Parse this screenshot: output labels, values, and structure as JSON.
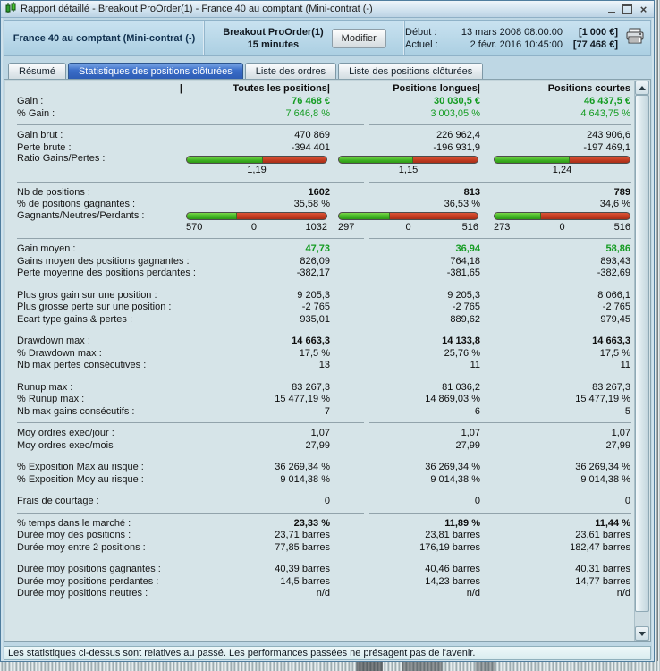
{
  "window": {
    "title": "Rapport détaillé - Breakout ProOrder(1) - France 40 au comptant (Mini-contrat  (-)",
    "close_glyph": "×"
  },
  "header": {
    "instrument": "France 40 au comptant (Mini-contrat  (-)",
    "strategy": "Breakout ProOrder(1)",
    "timeframe": "15 minutes",
    "modify_button": "Modifier",
    "start": {
      "label": "Début :",
      "datetime": "13 mars 2008 08:00:00",
      "amount": "[1 000 €]"
    },
    "current": {
      "label": "Actuel :",
      "datetime": "2 févr. 2016 10:45:00",
      "amount": "[77 468 €]"
    }
  },
  "tabs": [
    {
      "label": "Résumé",
      "active": false
    },
    {
      "label": "Statistiques des positions clôturées",
      "active": true
    },
    {
      "label": "Liste des ordres",
      "active": false
    },
    {
      "label": "Liste des positions clôturées",
      "active": false
    }
  ],
  "table": {
    "label_column_pipe": "|",
    "columns": [
      "Toutes les positions|",
      "Positions longues|",
      "Positions courtes"
    ],
    "gauge_colors": {
      "green": "#3fb224",
      "red": "#c03a20"
    },
    "rows": [
      {
        "type": "row",
        "label": "Gain :",
        "values": [
          "76 468 €",
          "30 030,5 €",
          "46 437,5 €"
        ],
        "style": "green bold"
      },
      {
        "type": "row",
        "label": "% Gain :",
        "values": [
          "7 646,8 %",
          "3 003,05 %",
          "4 643,75 %"
        ],
        "style": "green"
      },
      {
        "type": "sep"
      },
      {
        "type": "row",
        "label": "Gain brut :",
        "values": [
          "470 869",
          "226 962,4",
          "243 906,6"
        ]
      },
      {
        "type": "row",
        "label": "Perte brute :",
        "values": [
          "-394 401",
          "-196 931,9",
          "-197 469,1"
        ]
      },
      {
        "type": "bars",
        "label": "Ratio Gains/Pertes :",
        "fractions": [
          0.543,
          0.535,
          0.554
        ]
      },
      {
        "type": "barvals",
        "values": [
          [
            "1,19"
          ],
          [
            "1,15"
          ],
          [
            "1,24"
          ]
        ]
      },
      {
        "type": "sep"
      },
      {
        "type": "row",
        "label": "Nb de positions :",
        "values": [
          "1602",
          "813",
          "789"
        ],
        "style": "bold"
      },
      {
        "type": "row",
        "label": "% de positions gagnantes :",
        "values": [
          "35,58 %",
          "36,53 %",
          "34,6 %"
        ]
      },
      {
        "type": "bars",
        "label": "Gagnants/Neutres/Perdants :",
        "fractions": [
          0.356,
          0.365,
          0.346
        ]
      },
      {
        "type": "barvals",
        "values": [
          [
            "570",
            "0",
            "1032"
          ],
          [
            "297",
            "0",
            "516"
          ],
          [
            "273",
            "0",
            "516"
          ]
        ]
      },
      {
        "type": "sep"
      },
      {
        "type": "row",
        "label": "Gain moyen :",
        "values": [
          "47,73",
          "36,94",
          "58,86"
        ],
        "style": "green bold"
      },
      {
        "type": "row",
        "label": "Gains moyen des positions gagnantes :",
        "values": [
          "826,09",
          "764,18",
          "893,43"
        ]
      },
      {
        "type": "row",
        "label": "Perte moyenne des positions perdantes :",
        "values": [
          "-382,17",
          "-381,65",
          "-382,69"
        ]
      },
      {
        "type": "sep"
      },
      {
        "type": "row",
        "label": "Plus gros gain sur une position :",
        "values": [
          "9 205,3",
          "9 205,3",
          "8 066,1"
        ]
      },
      {
        "type": "row",
        "label": "Plus grosse perte sur une position :",
        "values": [
          "-2 765",
          "-2 765",
          "-2 765"
        ]
      },
      {
        "type": "row",
        "label": "Ecart type gains & pertes :",
        "values": [
          "935,01",
          "889,62",
          "979,45"
        ]
      },
      {
        "type": "gap"
      },
      {
        "type": "row",
        "label": "Drawdown max :",
        "values": [
          "14 663,3",
          "14 133,8",
          "14 663,3"
        ],
        "style": "bold"
      },
      {
        "type": "row",
        "label": "% Drawdown max :",
        "values": [
          "17,5 %",
          "25,76 %",
          "17,5 %"
        ]
      },
      {
        "type": "row",
        "label": "Nb max pertes consécutives :",
        "values": [
          "13",
          "11",
          "11"
        ]
      },
      {
        "type": "gap"
      },
      {
        "type": "row",
        "label": "Runup max :",
        "values": [
          "83 267,3",
          "81 036,2",
          "83 267,3"
        ]
      },
      {
        "type": "row",
        "label": "% Runup max :",
        "values": [
          "15 477,19 %",
          "14 869,03 %",
          "15 477,19 %"
        ]
      },
      {
        "type": "row",
        "label": "Nb max gains consécutifs :",
        "values": [
          "7",
          "6",
          "5"
        ]
      },
      {
        "type": "sep"
      },
      {
        "type": "row",
        "label": "Moy ordres exec/jour :",
        "values": [
          "1,07",
          "1,07",
          "1,07"
        ]
      },
      {
        "type": "row",
        "label": "Moy ordres exec/mois",
        "values": [
          "27,99",
          "27,99",
          "27,99"
        ]
      },
      {
        "type": "gap"
      },
      {
        "type": "row",
        "label": "% Exposition Max au risque :",
        "values": [
          "36 269,34 %",
          "36 269,34 %",
          "36 269,34 %"
        ]
      },
      {
        "type": "row",
        "label": "% Exposition Moy au risque :",
        "values": [
          "9 014,38 %",
          "9 014,38 %",
          "9 014,38 %"
        ]
      },
      {
        "type": "gap"
      },
      {
        "type": "row",
        "label": "Frais de courtage :",
        "values": [
          "0",
          "0",
          "0"
        ]
      },
      {
        "type": "sep"
      },
      {
        "type": "row",
        "label": "% temps dans le marché :",
        "values": [
          "23,33 %",
          "11,89 %",
          "11,44 %"
        ],
        "style": "bold"
      },
      {
        "type": "row",
        "label": "Durée moy des positions :",
        "values": [
          "23,71 barres",
          "23,81 barres",
          "23,61 barres"
        ]
      },
      {
        "type": "row",
        "label": "Durée moy entre 2 positions :",
        "values": [
          "77,85 barres",
          "176,19 barres",
          "182,47 barres"
        ]
      },
      {
        "type": "gap"
      },
      {
        "type": "row",
        "label": "Durée moy positions gagnantes :",
        "values": [
          "40,39 barres",
          "40,46 barres",
          "40,31 barres"
        ]
      },
      {
        "type": "row",
        "label": "Durée moy positions perdantes :",
        "values": [
          "14,5 barres",
          "14,23 barres",
          "14,77 barres"
        ]
      },
      {
        "type": "row",
        "label": "Durée moy positions neutres :",
        "values": [
          "n/d",
          "n/d",
          "n/d"
        ]
      }
    ]
  },
  "footer": {
    "disclaimer": "Les statistiques ci-dessus sont relatives au passé. Les performances passées ne présagent pas de l'avenir."
  }
}
